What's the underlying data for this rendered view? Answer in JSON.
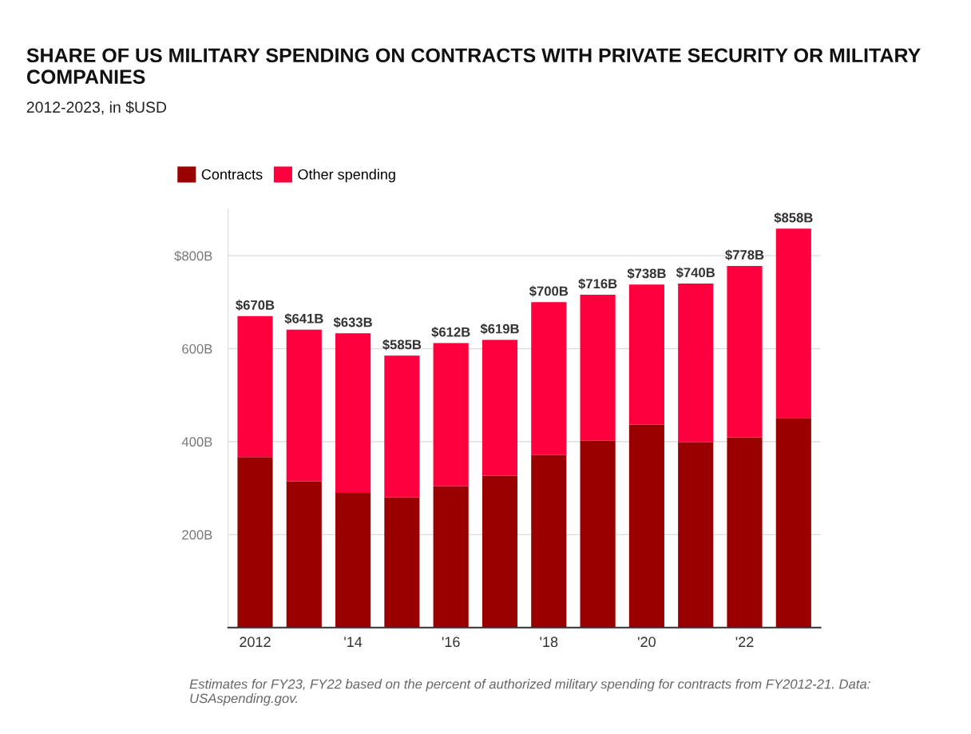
{
  "chart_data": {
    "type": "bar",
    "stacked": true,
    "title": "SHARE OF US MILITARY SPENDING ON CONTRACTS WITH PRIVATE SECURITY OR MILITARY COMPANIES",
    "subtitle": "2012-2023, in $USD",
    "categories": [
      "2012",
      null,
      "'14",
      null,
      "'16",
      null,
      "'18",
      null,
      "'20",
      null,
      "'22",
      null
    ],
    "series": [
      {
        "name": "Contracts",
        "color": "#990000",
        "values": [
          367,
          315,
          290,
          280,
          304,
          327,
          371,
          402,
          437,
          399,
          409,
          451
        ]
      },
      {
        "name": "Other spending",
        "color": "#ff003f",
        "values": [
          303,
          326,
          343,
          305,
          308,
          292,
          329,
          314,
          301,
          341,
          369,
          407
        ]
      }
    ],
    "totals": [
      "$670B",
      "$641B",
      "$633B",
      "$585B",
      "$612B",
      "$619B",
      "$700B",
      "$716B",
      "$738B",
      "$740B",
      "$778B",
      "$858B"
    ],
    "ylim": [
      0,
      900
    ],
    "yticks": [
      {
        "value": 0,
        "label": null
      },
      {
        "value": 200,
        "label": "200B"
      },
      {
        "value": 400,
        "label": "400B"
      },
      {
        "value": 600,
        "label": "600B"
      },
      {
        "value": 800,
        "label": "$800B"
      }
    ],
    "grid": "y",
    "legend": "top left",
    "annotations": [
      "Estimates for FY23, FY22 based on the percent of authorized military spending for contracts from FY2012-21. Data: USAspending.gov."
    ]
  }
}
